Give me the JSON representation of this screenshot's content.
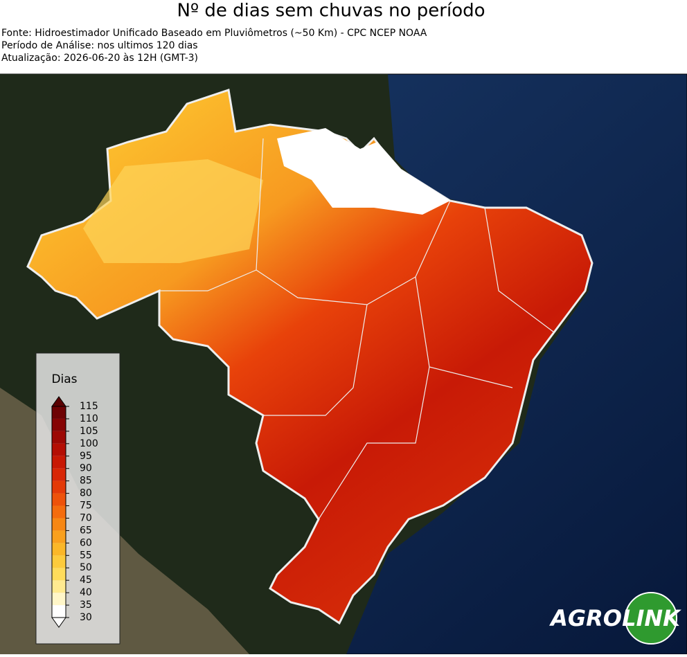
{
  "header": {
    "title": "Nº de dias sem chuvas no período",
    "source": "Fonte: Hidroestimador Unificado Baseado em Pluviômetros (~50 Km) - CPC NCEP NOAA",
    "period": "Período de Análise: nos ultimos 120 dias",
    "update": "Atualização: 2026-06-20 às 12H (GMT-3)"
  },
  "legend": {
    "title": "Dias",
    "ticks": [
      30,
      35,
      40,
      45,
      50,
      55,
      60,
      65,
      70,
      75,
      80,
      85,
      90,
      95,
      100,
      105,
      110,
      115
    ],
    "lim": [
      30,
      115
    ],
    "colors": [
      "#ffffff",
      "#fff6c8",
      "#ffea90",
      "#ffdc5a",
      "#fdcb3c",
      "#fbb728",
      "#f9a01e",
      "#f78714",
      "#f46c0e",
      "#ee520a",
      "#e43a08",
      "#d82606",
      "#c81804",
      "#b40e04",
      "#9c0804",
      "#860404",
      "#6e0204"
    ],
    "under_color": "#ffffff",
    "over_color": "#5a0102"
  },
  "logo": {
    "left": "AGRO",
    "right": "LINK"
  }
}
